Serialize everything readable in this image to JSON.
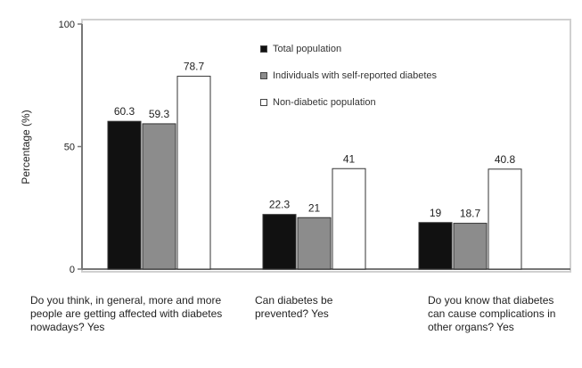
{
  "chart_data": {
    "type": "bar",
    "ylabel": "Percentage (%)",
    "ylim": [
      0,
      100
    ],
    "yticks": [
      0,
      50,
      100
    ],
    "grid": false,
    "legend_position": "top-right",
    "categories": [
      "Do you think, in general, more and more people are getting affected with diabetes nowadays? Yes",
      "Can diabetes be prevented? Yes",
      "Do you know that diabetes can cause complications in other organs? Yes"
    ],
    "series": [
      {
        "name": "Total population",
        "color": "#111111",
        "values": [
          60.3,
          22.3,
          19
        ],
        "labels": [
          "60.3",
          "22.3",
          "19"
        ]
      },
      {
        "name": "Individuals with self-reported diabetes",
        "color": "#8c8c8c",
        "values": [
          59.3,
          21,
          18.7
        ],
        "labels": [
          "59.3",
          "21",
          "18.7"
        ]
      },
      {
        "name": "Non-diabetic population",
        "color": "#ffffff",
        "values": [
          78.7,
          41,
          40.8
        ],
        "labels": [
          "78.7",
          "41",
          "40.8"
        ]
      }
    ]
  }
}
